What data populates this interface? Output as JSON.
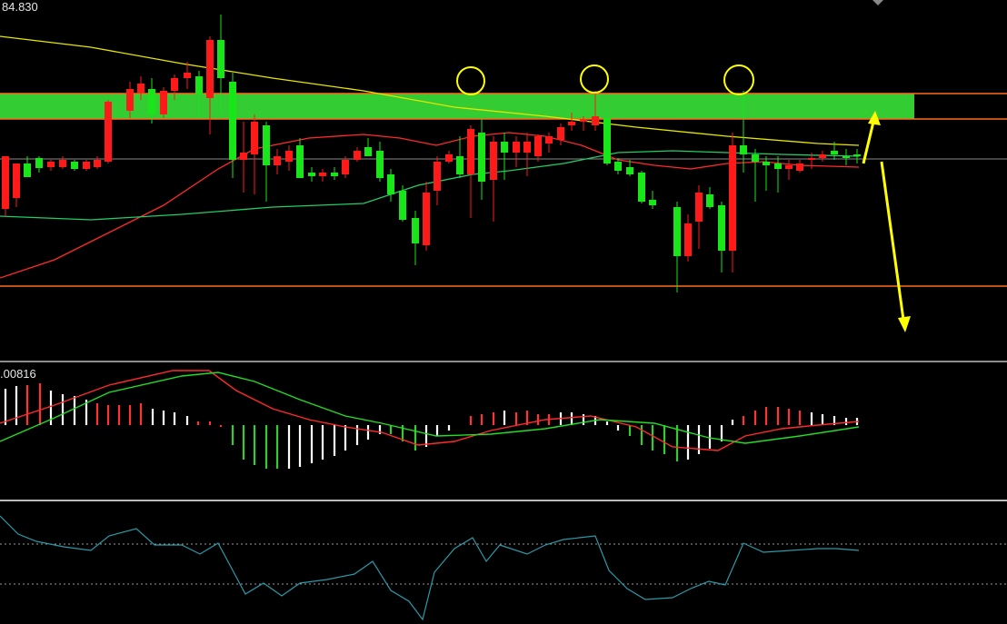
{
  "chart_data": [
    {
      "type": "candlestick",
      "price_label": "84.830",
      "colors": {
        "up": "#ff1a1a",
        "down": "#19e619",
        "background": "#000000"
      },
      "resistance_zone": {
        "color": "#33cc33",
        "border": "#ff6a1a"
      },
      "support_line": {
        "color": "#ff6a1a"
      },
      "annotations": {
        "circles": 3,
        "arrow_color": "#ffff00"
      },
      "moving_averages": [
        {
          "color": "#e6e600"
        },
        {
          "color": "#ff2a2a"
        },
        {
          "color": "#22cc66"
        }
      ]
    },
    {
      "type": "macd",
      "value_label": ".00816",
      "colors": {
        "macd": "#ff2a2a",
        "signal": "#22dd22",
        "hist_pos": "#ff3333",
        "hist_neg": "#33cc33",
        "hist_flat": "#ffffff"
      }
    },
    {
      "type": "line",
      "colors": {
        "line": "#2a9aa8",
        "levels": "#9a9a9a"
      }
    }
  ]
}
